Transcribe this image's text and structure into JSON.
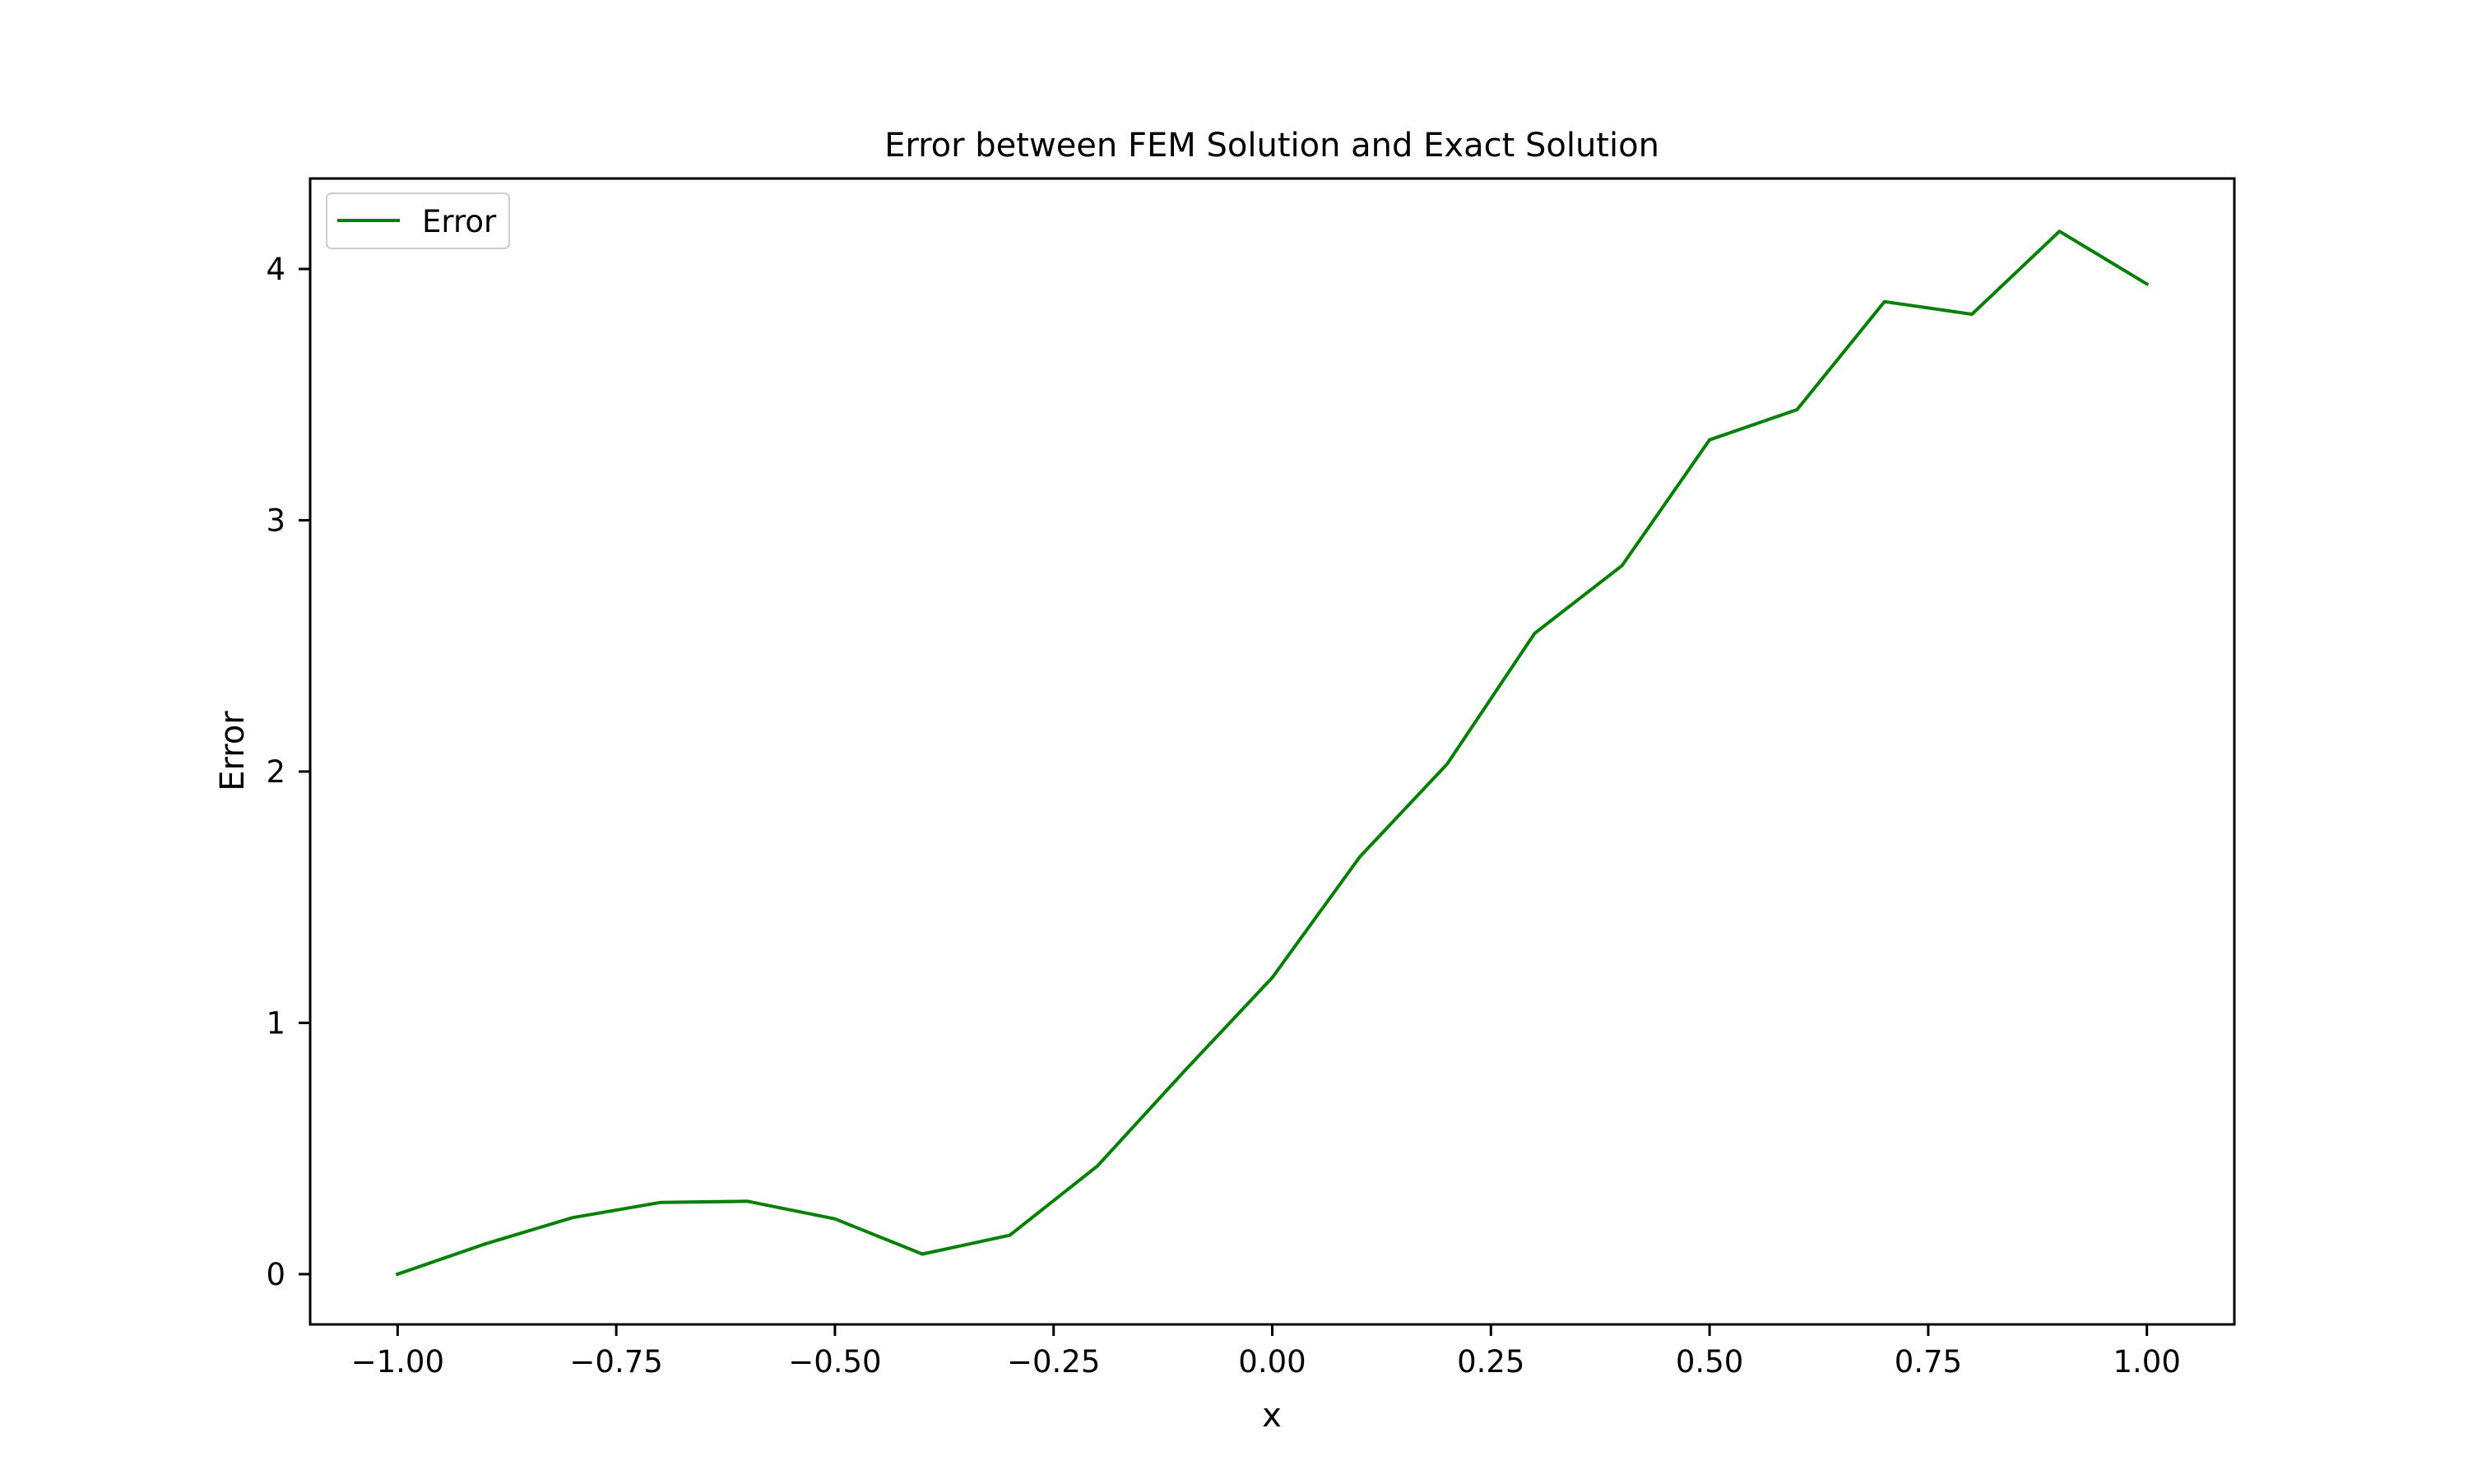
{
  "chart_data": {
    "type": "line",
    "title": "Error between FEM Solution and Exact Solution",
    "xlabel": "x",
    "ylabel": "Error",
    "xlim": [
      -1.1,
      1.1
    ],
    "ylim": [
      -0.2,
      4.36
    ],
    "grid": false,
    "legend_position": "top-left",
    "x_ticks": [
      -1.0,
      -0.75,
      -0.5,
      -0.25,
      0.0,
      0.25,
      0.5,
      0.75,
      1.0
    ],
    "x_tick_labels": [
      "−1.00",
      "−0.75",
      "−0.50",
      "−0.25",
      "0.00",
      "0.25",
      "0.50",
      "0.75",
      "1.00"
    ],
    "y_ticks": [
      0,
      1,
      2,
      3,
      4
    ],
    "y_tick_labels": [
      "0",
      "1",
      "2",
      "3",
      "4"
    ],
    "series": [
      {
        "name": "Error",
        "color": "#008000",
        "x": [
          -1.0,
          -0.9,
          -0.8,
          -0.7,
          -0.6,
          -0.5,
          -0.4,
          -0.3,
          -0.2,
          -0.1,
          0.0,
          0.1,
          0.2,
          0.3,
          0.4,
          0.5,
          0.6,
          0.7,
          0.8,
          0.9,
          1.0
        ],
        "y": [
          0.0,
          0.12,
          0.225,
          0.285,
          0.29,
          0.22,
          0.08,
          0.155,
          0.43,
          0.81,
          1.18,
          1.66,
          2.03,
          2.55,
          2.82,
          3.32,
          3.44,
          3.87,
          3.82,
          4.15,
          3.94
        ]
      }
    ]
  }
}
